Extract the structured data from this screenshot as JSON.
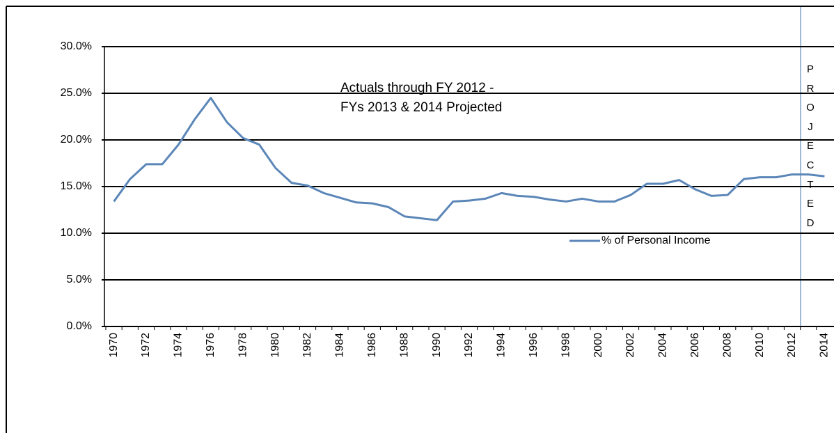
{
  "chart_data": {
    "type": "line",
    "annotations": [
      "Actuals through FY 2012 -",
      "FYs 2013 & 2014 Projected",
      "PROJECTED"
    ],
    "categories": [
      "1970",
      null,
      "1972",
      null,
      "1974",
      null,
      "1976",
      null,
      "1978",
      null,
      "1980",
      null,
      "1982",
      null,
      "1984",
      null,
      "1986",
      null,
      "1988",
      null,
      "1990",
      null,
      "1992",
      null,
      "1994",
      null,
      "1996",
      null,
      "1998",
      null,
      "2000",
      null,
      "2002",
      null,
      "2004",
      null,
      "2006",
      null,
      "2008",
      null,
      "2010",
      null,
      "2012",
      null,
      "2014"
    ],
    "series": [
      {
        "name": "% of Personal Income",
        "color": "#5b86b8",
        "values": [
          13.4,
          15.8,
          17.4,
          17.4,
          19.5,
          22.2,
          24.5,
          21.9,
          20.2,
          19.5,
          17.0,
          15.4,
          15.1,
          14.3,
          13.8,
          13.3,
          13.2,
          12.8,
          11.8,
          11.6,
          11.4,
          13.4,
          13.5,
          13.7,
          14.3,
          14.0,
          13.9,
          13.6,
          13.4,
          13.7,
          13.4,
          13.4,
          14.1,
          15.3,
          15.3,
          15.7,
          14.7,
          14.0,
          14.1,
          15.8,
          16.0,
          16.0,
          16.3,
          16.3,
          16.1
        ]
      }
    ],
    "ylim": [
      0,
      30
    ],
    "yticks": [
      {
        "value": 0,
        "label": "0.0%"
      },
      {
        "value": 5,
        "label": "5.0%"
      },
      {
        "value": 10,
        "label": "10.0%"
      },
      {
        "value": 15,
        "label": "15.0%"
      },
      {
        "value": 20,
        "label": "20.0%"
      },
      {
        "value": 25,
        "label": "25.0%"
      },
      {
        "value": 30,
        "label": "30.0%"
      }
    ],
    "grid": true,
    "legend": "center-right"
  }
}
